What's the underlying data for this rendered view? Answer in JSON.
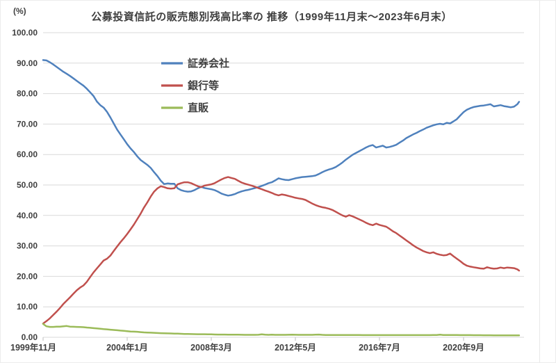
{
  "colors": {
    "securities_blue": "#4F81BD",
    "banks_red": "#C0504D",
    "direct_green": "#9BBB59",
    "grid": "#d9d9d9",
    "tick_mark": "#bfbfbf",
    "text": "#3f3f3f"
  },
  "chart_data": {
    "type": "line",
    "title": "公募投資信託の販売態別残高比率の 推移（1999年11月末～2023年6月末）",
    "y_unit": "(%)",
    "xlabel": "",
    "ylabel": "(%)",
    "ylim": [
      0,
      100
    ],
    "y_tick_step": 10,
    "y_tick_format_example": "100.00",
    "grid": true,
    "legend_position": "top-left-inside",
    "x_period_start": "1999年11月末",
    "x_period_end": "2023年6月末",
    "x_ticks": [
      {
        "label": "1999年11月",
        "month": 0
      },
      {
        "label": "2004年1月",
        "month": 50
      },
      {
        "label": "2008年3月",
        "month": 100
      },
      {
        "label": "2012年5月",
        "month": 150
      },
      {
        "label": "2016年7月",
        "month": 200
      },
      {
        "label": "2020年9月",
        "month": 250
      }
    ],
    "x_months": {
      "start": 0,
      "step": 2,
      "end": 282,
      "extra": 283
    },
    "series": [
      {
        "name": "証券会社",
        "color": "#4F81BD",
        "values": [
          91.0,
          90.9,
          90.3,
          89.6,
          88.8,
          88.0,
          87.2,
          86.5,
          85.8,
          85.0,
          84.2,
          83.4,
          82.6,
          81.6,
          80.4,
          79.2,
          77.4,
          76.2,
          75.4,
          74.0,
          72.2,
          70.2,
          68.2,
          66.6,
          65.0,
          63.4,
          62.0,
          60.8,
          59.4,
          58.2,
          57.4,
          56.6,
          55.6,
          54.2,
          52.9,
          51.4,
          50.3,
          50.5,
          50.4,
          50.4,
          48.9,
          48.3,
          48.0,
          47.8,
          47.9,
          48.3,
          48.9,
          49.4,
          49.0,
          48.8,
          48.6,
          48.3,
          47.8,
          47.2,
          46.8,
          46.5,
          46.7,
          47.0,
          47.5,
          47.9,
          48.2,
          48.4,
          48.7,
          49.0,
          49.3,
          49.7,
          50.1,
          50.6,
          50.9,
          51.5,
          52.2,
          51.9,
          51.7,
          51.6,
          51.9,
          52.2,
          52.4,
          52.6,
          52.7,
          52.8,
          52.9,
          53.1,
          53.6,
          54.2,
          54.7,
          55.1,
          55.4,
          55.9,
          56.6,
          57.4,
          58.3,
          59.1,
          59.9,
          60.5,
          61.1,
          61.7,
          62.3,
          62.8,
          63.1,
          62.3,
          62.6,
          62.9,
          62.3,
          62.5,
          62.8,
          63.2,
          63.9,
          64.6,
          65.4,
          66.0,
          66.6,
          67.1,
          67.7,
          68.2,
          68.8,
          69.2,
          69.6,
          69.9,
          70.1,
          69.9,
          70.4,
          70.2,
          70.9,
          71.6,
          72.8,
          73.9,
          74.7,
          75.2,
          75.6,
          75.8,
          76.0,
          76.1,
          76.3,
          76.5,
          75.8,
          76.0,
          76.2,
          75.9,
          75.7,
          75.5,
          75.7,
          76.5,
          77.3
        ]
      },
      {
        "name": "銀行等",
        "color": "#C0504D",
        "values": [
          4.5,
          5.3,
          6.2,
          7.3,
          8.4,
          9.6,
          10.9,
          12.0,
          13.1,
          14.3,
          15.4,
          16.3,
          17.0,
          18.2,
          19.8,
          21.3,
          22.6,
          23.9,
          25.2,
          25.8,
          26.8,
          28.3,
          29.8,
          31.2,
          32.5,
          33.9,
          35.4,
          37.0,
          38.8,
          40.6,
          42.6,
          44.3,
          46.2,
          47.8,
          48.9,
          49.6,
          49.3,
          48.9,
          48.8,
          48.9,
          50.2,
          50.6,
          50.9,
          50.9,
          50.6,
          50.1,
          49.6,
          49.3,
          49.8,
          50.0,
          50.2,
          50.6,
          51.2,
          51.8,
          52.3,
          52.6,
          52.3,
          52.0,
          51.4,
          50.8,
          50.4,
          50.1,
          49.8,
          49.4,
          49.0,
          48.6,
          48.2,
          47.8,
          47.4,
          46.9,
          46.6,
          46.9,
          46.7,
          46.4,
          46.1,
          45.8,
          45.6,
          45.4,
          45.1,
          44.5,
          43.9,
          43.4,
          43.0,
          42.7,
          42.5,
          42.2,
          41.8,
          41.2,
          40.6,
          40.0,
          39.6,
          40.1,
          39.7,
          39.2,
          38.7,
          38.2,
          37.6,
          37.1,
          36.8,
          37.3,
          36.9,
          36.6,
          36.3,
          35.6,
          34.8,
          34.2,
          33.4,
          32.6,
          31.8,
          31.0,
          30.2,
          29.5,
          28.9,
          28.3,
          27.9,
          27.6,
          27.9,
          27.4,
          27.1,
          26.9,
          27.0,
          27.5,
          26.6,
          25.8,
          25.0,
          24.1,
          23.5,
          23.2,
          23.0,
          22.8,
          22.6,
          22.5,
          23.0,
          22.7,
          22.5,
          22.6,
          22.9,
          22.7,
          22.9,
          22.8,
          22.7,
          22.3,
          21.9
        ]
      },
      {
        "name": "直販",
        "color": "#9BBB59",
        "values": [
          4.4,
          3.6,
          3.4,
          3.4,
          3.5,
          3.5,
          3.6,
          3.7,
          3.5,
          3.45,
          3.4,
          3.35,
          3.3,
          3.2,
          3.1,
          3.0,
          2.9,
          2.8,
          2.7,
          2.6,
          2.5,
          2.4,
          2.3,
          2.2,
          2.1,
          2.0,
          1.9,
          1.85,
          1.8,
          1.7,
          1.6,
          1.55,
          1.5,
          1.45,
          1.4,
          1.35,
          1.3,
          1.28,
          1.25,
          1.22,
          1.2,
          1.15,
          1.1,
          1.08,
          1.05,
          1.02,
          1.0,
          1.0,
          1.0,
          0.98,
          0.95,
          0.92,
          0.9,
          0.9,
          0.88,
          0.85,
          0.85,
          0.85,
          0.85,
          0.82,
          0.8,
          0.8,
          0.8,
          0.8,
          0.82,
          0.95,
          0.85,
          0.8,
          0.85,
          0.8,
          0.8,
          0.8,
          0.8,
          0.82,
          0.85,
          0.82,
          0.8,
          0.8,
          0.8,
          0.8,
          0.8,
          0.85,
          0.9,
          0.8,
          0.76,
          0.75,
          0.75,
          0.75,
          0.74,
          0.74,
          0.73,
          0.73,
          0.72,
          0.72,
          0.72,
          0.71,
          0.71,
          0.7,
          0.7,
          0.7,
          0.7,
          0.7,
          0.7,
          0.7,
          0.7,
          0.7,
          0.7,
          0.7,
          0.7,
          0.7,
          0.7,
          0.7,
          0.7,
          0.7,
          0.7,
          0.7,
          0.72,
          0.74,
          0.85,
          0.75,
          0.72,
          0.72,
          0.75,
          0.72,
          0.7,
          0.7,
          0.7,
          0.7,
          0.68,
          0.68,
          0.68,
          0.66,
          0.66,
          0.66,
          0.65,
          0.65,
          0.65,
          0.65,
          0.65,
          0.65,
          0.65,
          0.65,
          0.65
        ]
      }
    ]
  }
}
